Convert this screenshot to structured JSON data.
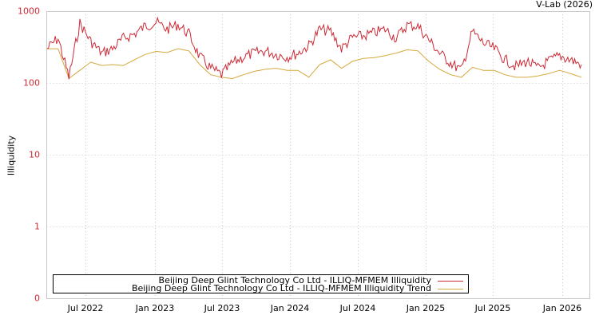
{
  "credit": "V-Lab (2026)",
  "colors": {
    "illiquidity": "#cc2a36",
    "trend": "#d4a93c",
    "grid": "#c8c8c8",
    "frame": "#c8c8c8",
    "ytick": "#cc2a36"
  },
  "legend": {
    "items": [
      {
        "label": "Beijing Deep Glint Technology Co Ltd - ILLIQ-MFMEM Illiquidity",
        "color": "#cc2a36"
      },
      {
        "label": "Beijing Deep Glint Technology Co Ltd - ILLIQ-MFMEM Illiquidity Trend",
        "color": "#d4a93c"
      }
    ]
  },
  "chart_data": {
    "type": "line",
    "title": "",
    "xlabel": "",
    "ylabel": "Illiquidity",
    "yscale": "log",
    "ylim": [
      0,
      1000
    ],
    "yticks": [
      "1000",
      "100",
      "10",
      "1",
      "0"
    ],
    "xticks": [
      "Jul 2022",
      "Jan 2023",
      "Jul 2023",
      "Jan 2024",
      "Jul 2024",
      "Jan 2025",
      "Jul 2025",
      "Jan 2026"
    ],
    "grid": true,
    "legend_position": "bottom",
    "x": [
      "2022-02",
      "2022-03",
      "2022-03b",
      "2022-04",
      "2022-05",
      "2022-06",
      "2022-07",
      "2022-08",
      "2022-09",
      "2022-10",
      "2022-11",
      "2022-12",
      "2023-01",
      "2023-02",
      "2023-03",
      "2023-04",
      "2023-05",
      "2023-06",
      "2023-07",
      "2023-08",
      "2023-09",
      "2023-10",
      "2023-11",
      "2023-12",
      "2024-01",
      "2024-02",
      "2024-03",
      "2024-04",
      "2024-05",
      "2024-06",
      "2024-07",
      "2024-08",
      "2024-09",
      "2024-10",
      "2024-11",
      "2024-12",
      "2025-01",
      "2025-02",
      "2025-03",
      "2025-04",
      "2025-05",
      "2025-06",
      "2025-07",
      "2025-08",
      "2025-09",
      "2025-10",
      "2025-11",
      "2025-12",
      "2026-01",
      "2026-02"
    ],
    "series": [
      {
        "name": "Beijing Deep Glint Technology Co Ltd - ILLIQ-MFMEM Illiquidity",
        "values": [
          300,
          420,
          120,
          680,
          380,
          260,
          300,
          420,
          480,
          620,
          700,
          560,
          650,
          480,
          230,
          160,
          130,
          190,
          230,
          260,
          280,
          250,
          230,
          260,
          330,
          560,
          520,
          300,
          430,
          450,
          500,
          560,
          420,
          640,
          620,
          400,
          260,
          190,
          150,
          520,
          360,
          300,
          210,
          170,
          200,
          160,
          200,
          240,
          210,
          180
        ]
      },
      {
        "name": "Beijing Deep Glint Technology Co Ltd - ILLIQ-MFMEM Illiquidity Trend",
        "values": [
          300,
          300,
          115,
          150,
          195,
          175,
          180,
          175,
          210,
          250,
          275,
          265,
          300,
          280,
          180,
          130,
          120,
          115,
          130,
          145,
          155,
          160,
          150,
          150,
          120,
          180,
          210,
          160,
          200,
          220,
          225,
          240,
          260,
          290,
          280,
          200,
          155,
          130,
          120,
          165,
          150,
          150,
          130,
          120,
          120,
          125,
          135,
          150,
          135,
          120
        ]
      }
    ]
  }
}
